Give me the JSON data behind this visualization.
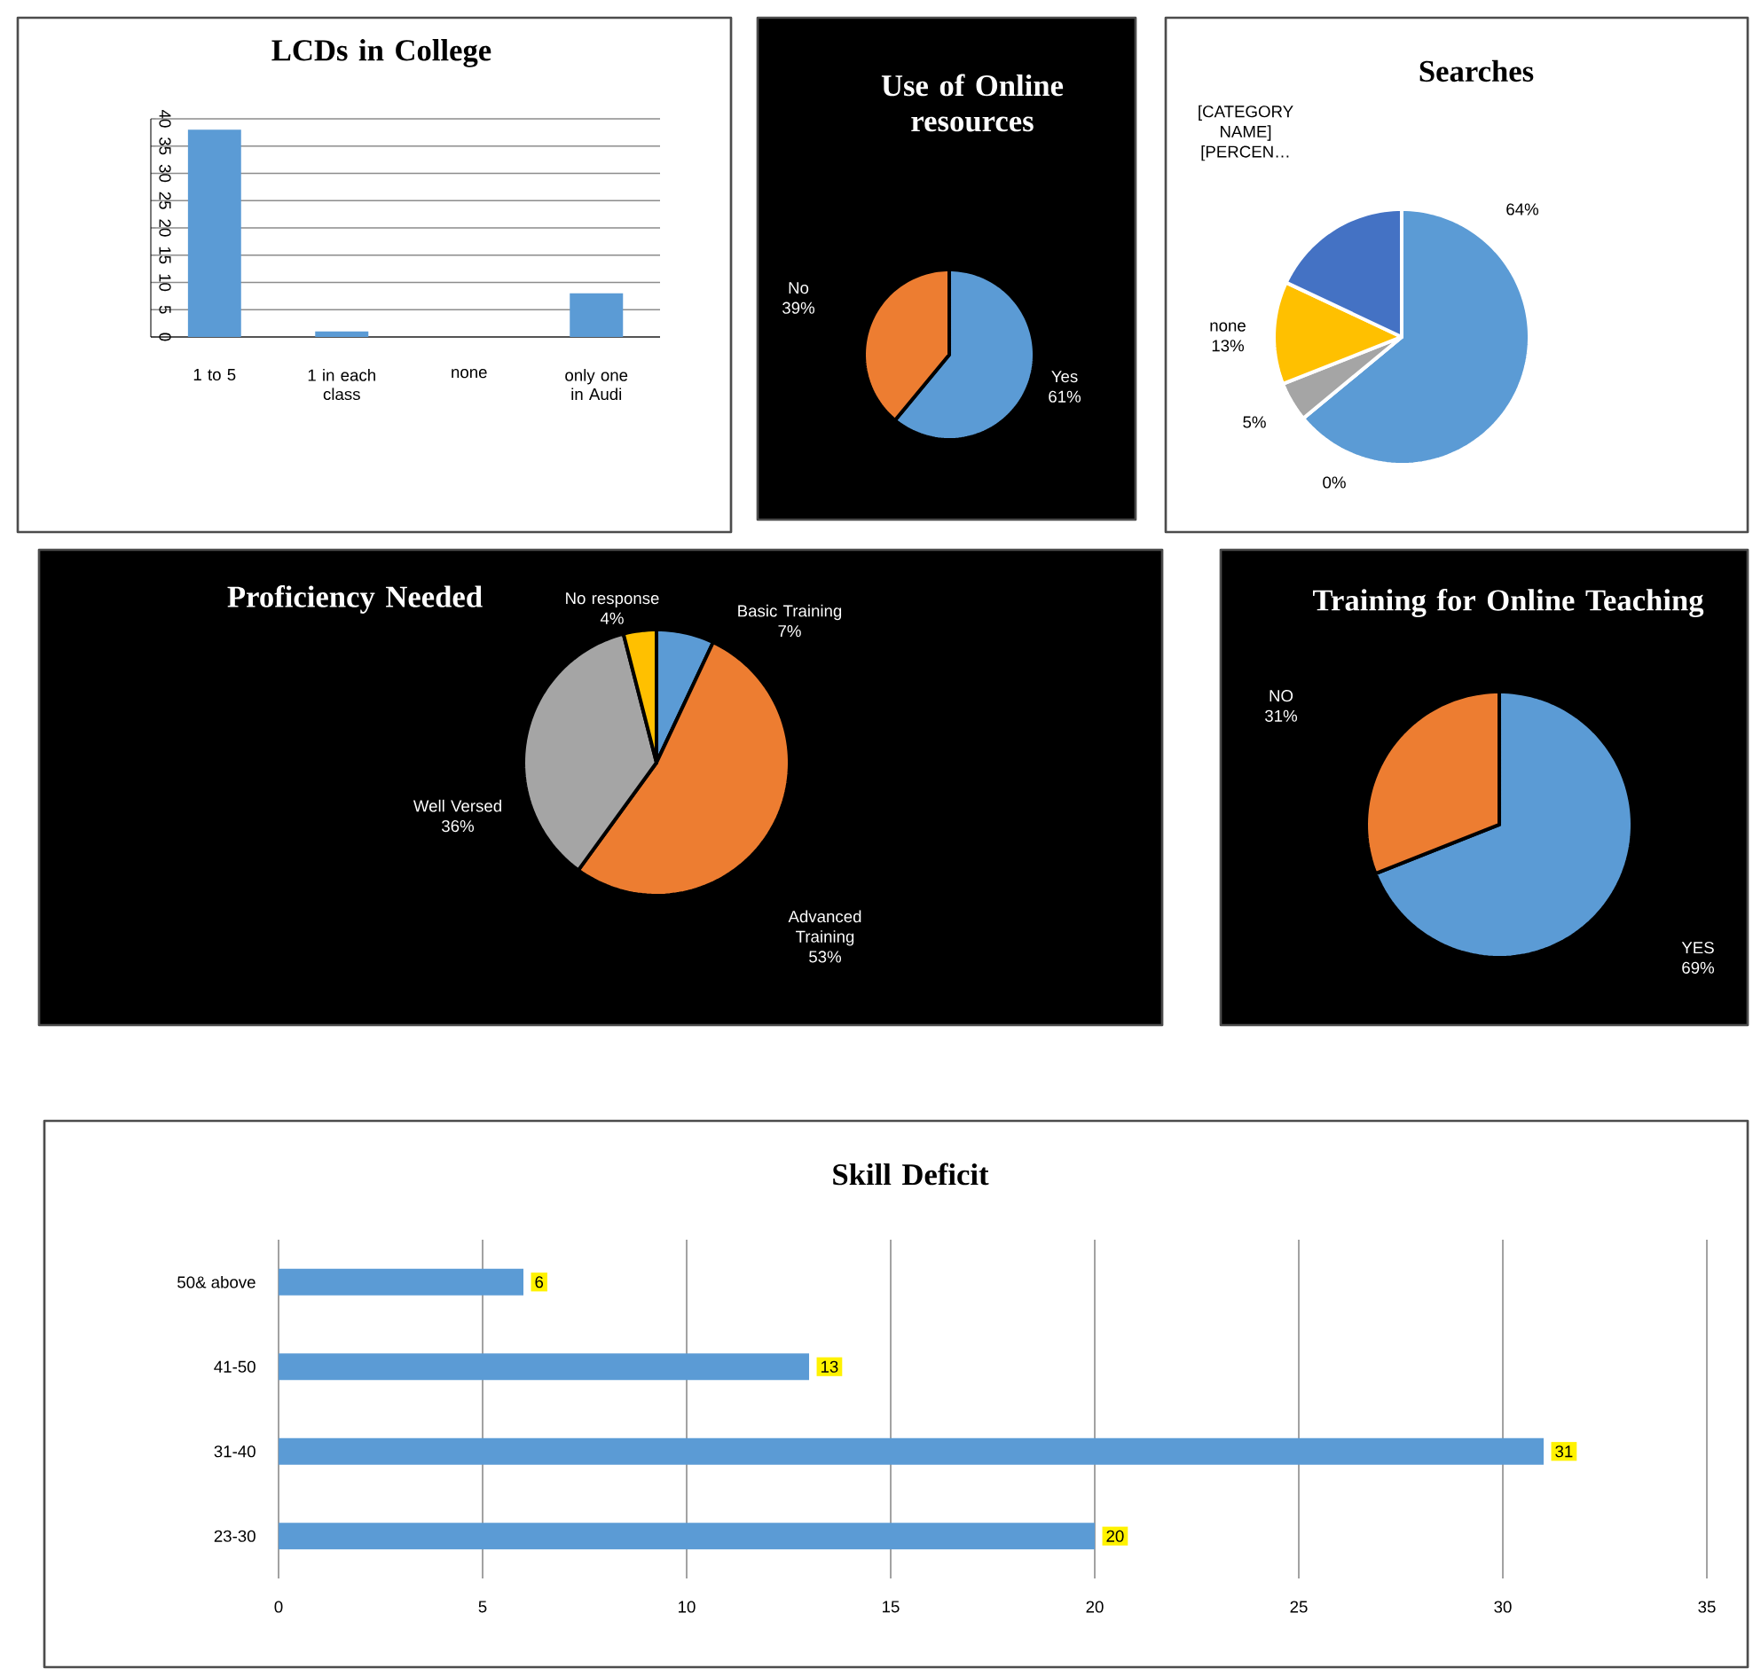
{
  "chart_data": [
    {
      "type": "bar",
      "title": "LCDs in College",
      "categories": [
        "1 to 5",
        "1 in each class",
        "none",
        "only one in Audi"
      ],
      "values": [
        38,
        1,
        0,
        8
      ],
      "color": "#5b9bd5",
      "ylim": [
        0,
        40
      ],
      "yticks": [
        0,
        5,
        10,
        15,
        20,
        25,
        30,
        35,
        40
      ],
      "grid": "y"
    },
    {
      "type": "pie",
      "title": "Use of Online resources",
      "categories": [
        "Yes",
        "No"
      ],
      "values": [
        61,
        39
      ],
      "colors": [
        "#5b9bd5",
        "#ed7d31"
      ],
      "value_labels": [
        "61%",
        "39%"
      ]
    },
    {
      "type": "pie",
      "title": "Searches",
      "categories": [
        null,
        null,
        null,
        "none",
        "[CATEGORY NAME] [PERCEN…"
      ],
      "values": [
        64,
        0,
        5,
        13,
        18
      ],
      "colors": [
        "#5b9bd5",
        "#ed7d31",
        "#a5a5a5",
        "#ffc000",
        "#4472c4"
      ],
      "value_labels": [
        "64%",
        "0%",
        "5%",
        "13%",
        null
      ]
    },
    {
      "type": "pie",
      "title": "Proficiency Needed",
      "categories": [
        "Basic Training",
        "Advanced Training",
        "Well Versed",
        "No response"
      ],
      "values": [
        7,
        53,
        36,
        4
      ],
      "colors": [
        "#5b9bd5",
        "#ed7d31",
        "#a5a5a5",
        "#ffc000"
      ],
      "value_labels": [
        "7%",
        "53%",
        "36%",
        "4%"
      ]
    },
    {
      "type": "pie",
      "title": "Training for Online Teaching",
      "categories": [
        "YES",
        "NO"
      ],
      "values": [
        69,
        31
      ],
      "colors": [
        "#5b9bd5",
        "#ed7d31"
      ],
      "value_labels": [
        "69%",
        "31%"
      ]
    },
    {
      "type": "bar",
      "orientation": "horizontal",
      "title": "Skill Deficit",
      "categories": [
        "50& above",
        "41-50",
        "31-40",
        "23-30"
      ],
      "values": [
        6,
        13,
        31,
        20
      ],
      "color": "#5b9bd5",
      "xlim": [
        0,
        35
      ],
      "xticks": [
        0,
        5,
        10,
        15,
        20,
        25,
        30,
        35
      ],
      "grid": "x",
      "data_labels": true
    }
  ]
}
